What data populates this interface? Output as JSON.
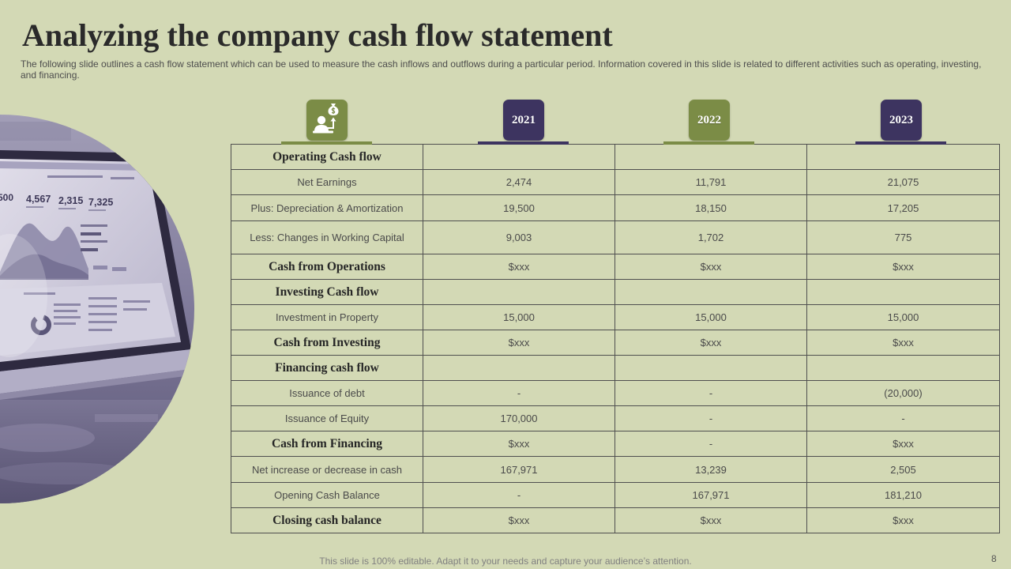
{
  "slide": {
    "title": "Analyzing the company cash flow statement",
    "subtitle": "The following slide outlines a cash flow statement which can be used to measure the cash inflows and outflows during a particular period. Information covered in this slide is related to different activities such as operating, investing, and financing.",
    "footer": "This slide is 100% editable. Adapt it to your needs and capture your audience’s attention.",
    "page_number": "8"
  },
  "colors": {
    "background": "#d3d9b5",
    "accent_green": "#7b8c46",
    "accent_purple": "#3d3460",
    "table_border": "#4f4f4f",
    "title_text": "#2a2a2a",
    "body_text": "#4a4a4a"
  },
  "hero_image": {
    "icon": "laptop-dashboard-photo",
    "screen_numbers": [
      "500",
      "4,567",
      "2,315",
      "7,325"
    ]
  },
  "table": {
    "header_icon": "person-money-bag-icon",
    "years": [
      {
        "label": "2021",
        "color": "#3d3460"
      },
      {
        "label": "2022",
        "color": "#7b8c46"
      },
      {
        "label": "2023",
        "color": "#3d3460"
      }
    ],
    "rows": [
      {
        "label": "Operating Cash flow",
        "emphasis": true,
        "values": [
          "",
          "",
          ""
        ]
      },
      {
        "label": "Net Earnings",
        "emphasis": false,
        "values": [
          "2,474",
          "11,791",
          "21,075"
        ]
      },
      {
        "label": "Plus: Depreciation & Amortization",
        "emphasis": false,
        "values": [
          "19,500",
          "18,150",
          "17,205"
        ]
      },
      {
        "label": "Less: Changes in Working Capital",
        "emphasis": false,
        "values": [
          "9,003",
          "1,702",
          "775"
        ]
      },
      {
        "label": "Cash from Operations",
        "emphasis": true,
        "values": [
          "$xxx",
          "$xxx",
          "$xxx"
        ]
      },
      {
        "label": "Investing Cash flow",
        "emphasis": true,
        "values": [
          "",
          "",
          ""
        ]
      },
      {
        "label": "Investment in Property",
        "emphasis": false,
        "values": [
          "15,000",
          "15,000",
          "15,000"
        ]
      },
      {
        "label": "Cash from Investing",
        "emphasis": true,
        "values": [
          "$xxx",
          "$xxx",
          "$xxx"
        ]
      },
      {
        "label": "Financing cash flow",
        "emphasis": true,
        "values": [
          "",
          "",
          ""
        ]
      },
      {
        "label": "Issuance of debt",
        "emphasis": false,
        "values": [
          "-",
          "-",
          "(20,000)"
        ]
      },
      {
        "label": "Issuance of Equity",
        "emphasis": false,
        "values": [
          "170,000",
          "-",
          "-"
        ]
      },
      {
        "label": "Cash from Financing",
        "emphasis": true,
        "values": [
          "$xxx",
          "-",
          "$xxx"
        ]
      },
      {
        "label": "Net increase or decrease in cash",
        "emphasis": false,
        "values": [
          "167,971",
          "13,239",
          "2,505"
        ]
      },
      {
        "label": "Opening Cash Balance",
        "emphasis": false,
        "values": [
          "-",
          "167,971",
          "181,210"
        ]
      },
      {
        "label": "Closing cash balance",
        "emphasis": true,
        "values": [
          "$xxx",
          "$xxx",
          "$xxx"
        ]
      }
    ]
  }
}
